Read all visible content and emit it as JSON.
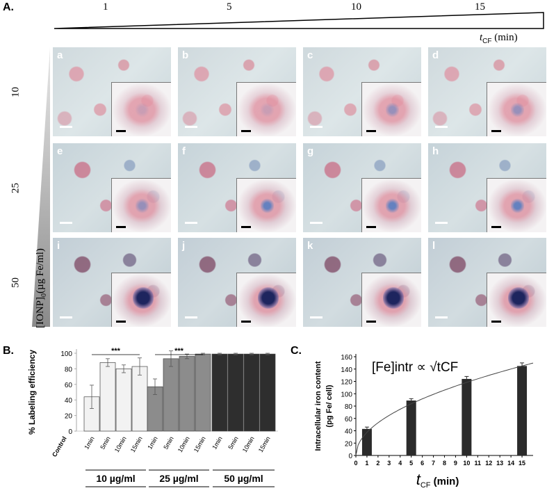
{
  "panel_a": {
    "letter": "A.",
    "time_ticks": [
      "1",
      "5",
      "10",
      "15"
    ],
    "time_axis_label": "t",
    "time_axis_sub": "CF",
    "time_axis_unit": "(min)",
    "conc_ticks": [
      "10",
      "25",
      "50"
    ],
    "conc_axis_label": "[IONP]",
    "conc_axis_sub": "0",
    "conc_axis_unit": "(µg Fe/ml)",
    "tiles": [
      {
        "label": "a",
        "row": "10",
        "col": "1"
      },
      {
        "label": "b",
        "row": "10",
        "col": "5"
      },
      {
        "label": "c",
        "row": "10",
        "col": "10"
      },
      {
        "label": "d",
        "row": "10",
        "col": "15"
      },
      {
        "label": "e",
        "row": "25",
        "col": "1"
      },
      {
        "label": "f",
        "row": "25",
        "col": "5"
      },
      {
        "label": "g",
        "row": "25",
        "col": "10"
      },
      {
        "label": "h",
        "row": "25",
        "col": "15"
      },
      {
        "label": "i",
        "row": "50",
        "col": "1"
      },
      {
        "label": "j",
        "row": "50",
        "col": "5"
      },
      {
        "label": "k",
        "row": "50",
        "col": "10"
      },
      {
        "label": "l",
        "row": "50",
        "col": "15"
      }
    ]
  },
  "chart_data": [
    {
      "panel": "B.",
      "type": "bar",
      "ylabel": "% Labeling efficiency",
      "ylim": [
        0,
        100
      ],
      "yticks": [
        0,
        20,
        40,
        60,
        80,
        100
      ],
      "categories": [
        "Control",
        "1min",
        "5min",
        "10min",
        "15min",
        "1min",
        "5min",
        "10min",
        "15min",
        "1min",
        "5min",
        "10min",
        "15min"
      ],
      "values": [
        0,
        44,
        88,
        80,
        83,
        57,
        93,
        96,
        99,
        99,
        99,
        99,
        99
      ],
      "errors": [
        0,
        15,
        5,
        5,
        11,
        10,
        10,
        3,
        1,
        1,
        1,
        1,
        1
      ],
      "groups": [
        {
          "label": "10 µg/ml",
          "color": "#f2f2f2"
        },
        {
          "label": "25 µg/ml",
          "color": "#8c8c8c"
        },
        {
          "label": "50 µg/ml",
          "color": "#2e2e2e"
        }
      ],
      "annotations": [
        "***",
        "***"
      ]
    },
    {
      "panel": "C.",
      "type": "bar",
      "ylabel_line1": "Intracellular iron content",
      "ylabel_line2": "(pg Fe/ cell)",
      "xlabel_t": "t",
      "xlabel_sub": "CF",
      "xlabel_unit": "(min)",
      "ylim": [
        0,
        160
      ],
      "yticks": [
        0,
        20,
        40,
        60,
        80,
        100,
        120,
        140,
        160
      ],
      "xlim": [
        0,
        16
      ],
      "xticks": [
        0,
        1,
        2,
        3,
        4,
        5,
        6,
        7,
        8,
        9,
        10,
        11,
        12,
        13,
        14,
        15
      ],
      "x": [
        1,
        5,
        10,
        15
      ],
      "values": [
        43,
        89,
        124,
        145
      ],
      "errors": [
        3,
        3,
        4,
        5
      ],
      "fit_curve": "sqrt",
      "equation": "[Fe]intr ∝ √tCF"
    }
  ]
}
